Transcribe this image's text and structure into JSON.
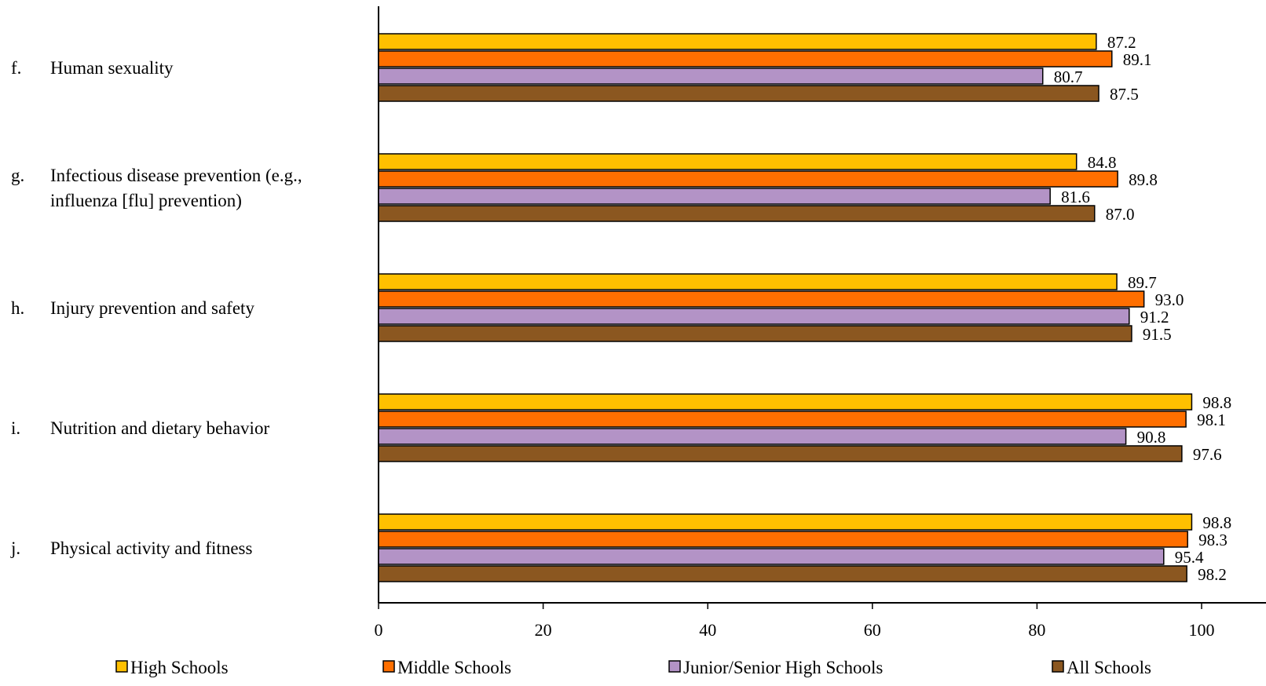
{
  "chart_data": {
    "type": "bar",
    "orientation": "horizontal",
    "categories": [
      {
        "letter": "f.",
        "lines": [
          "Human sexuality"
        ]
      },
      {
        "letter": "g.",
        "lines": [
          "Infectious disease prevention (e.g.,",
          "influenza [flu] prevention)"
        ]
      },
      {
        "letter": "h.",
        "lines": [
          "Injury prevention and safety"
        ]
      },
      {
        "letter": "i.",
        "lines": [
          "Nutrition and dietary behavior"
        ]
      },
      {
        "letter": "j.",
        "lines": [
          "Physical activity and fitness"
        ]
      }
    ],
    "series": [
      {
        "name": "High Schools",
        "color": "#FFC000",
        "values": [
          87.2,
          84.8,
          89.7,
          98.8,
          98.8
        ],
        "labels": [
          "87.2",
          "84.8",
          "89.7",
          "98.8",
          "98.8"
        ]
      },
      {
        "name": "Middle Schools",
        "color": "#FF6F00",
        "values": [
          89.1,
          89.8,
          93.0,
          98.1,
          98.3
        ],
        "labels": [
          "89.1",
          "89.8",
          "93.0",
          "98.1",
          "98.3"
        ]
      },
      {
        "name": "Junior/Senior High Schools",
        "color": "#B393C6",
        "values": [
          80.7,
          81.6,
          91.2,
          90.8,
          95.4
        ],
        "labels": [
          "80.7",
          "81.6",
          "91.2",
          "90.8",
          "95.4"
        ]
      },
      {
        "name": "All Schools",
        "color": "#8B5720",
        "values": [
          87.5,
          87.0,
          91.5,
          97.6,
          98.2
        ],
        "labels": [
          "87.5",
          "87.0",
          "91.5",
          "97.6",
          "98.2"
        ]
      }
    ],
    "xlim": [
      0,
      100
    ],
    "xticks": [
      0,
      20,
      40,
      60,
      80,
      100
    ],
    "title": "",
    "xlabel": "",
    "ylabel": "",
    "grid": false,
    "legend_position": "bottom"
  }
}
